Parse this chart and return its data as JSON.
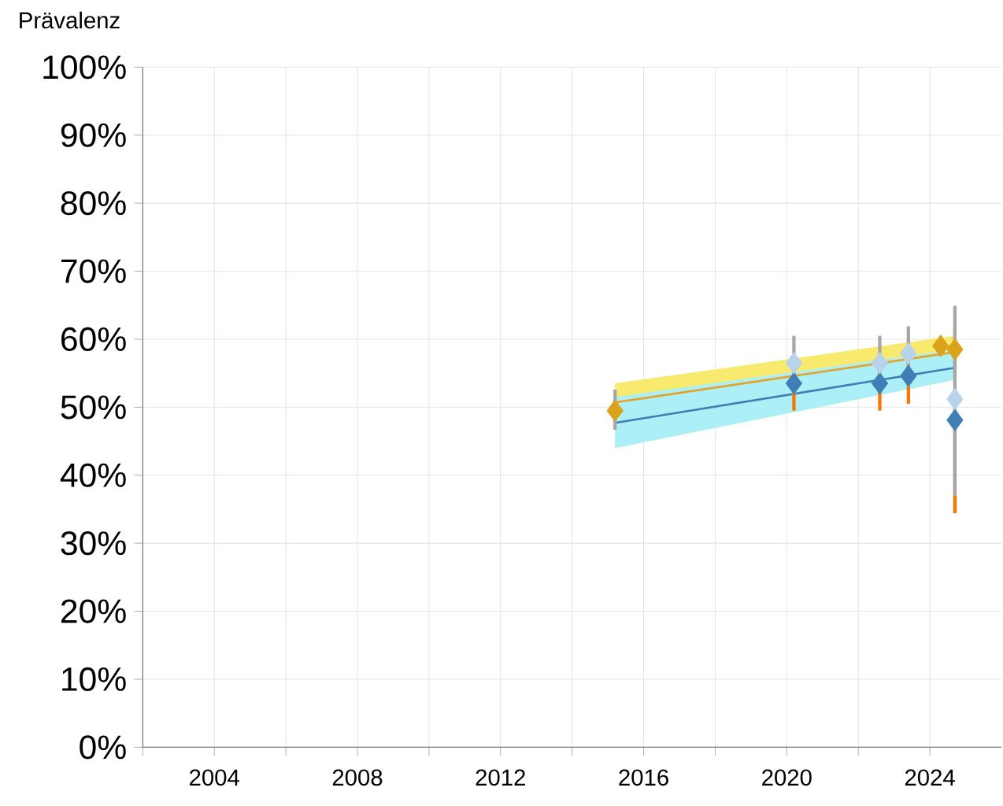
{
  "chart_data": {
    "type": "scatter",
    "ylabel": "Prävalenz",
    "xlim": [
      2002,
      2026
    ],
    "ylim": [
      0,
      100
    ],
    "xticks": [
      {
        "value": 2002,
        "label": null
      },
      {
        "value": 2004,
        "label": "2004"
      },
      {
        "value": 2006,
        "label": null
      },
      {
        "value": 2008,
        "label": "2008"
      },
      {
        "value": 2010,
        "label": null
      },
      {
        "value": 2012,
        "label": "2012"
      },
      {
        "value": 2014,
        "label": null
      },
      {
        "value": 2016,
        "label": "2016"
      },
      {
        "value": 2018,
        "label": null
      },
      {
        "value": 2020,
        "label": "2020"
      },
      {
        "value": 2022,
        "label": null
      },
      {
        "value": 2024,
        "label": "2024"
      }
    ],
    "yticks": [
      {
        "value": 0,
        "label": "0%"
      },
      {
        "value": 10,
        "label": "10%"
      },
      {
        "value": 20,
        "label": "20%"
      },
      {
        "value": 30,
        "label": "30%"
      },
      {
        "value": 40,
        "label": "40%"
      },
      {
        "value": 50,
        "label": "50%"
      },
      {
        "value": 60,
        "label": "60%"
      },
      {
        "value": 70,
        "label": "70%"
      },
      {
        "value": 80,
        "label": "80%"
      },
      {
        "value": 90,
        "label": "90%"
      },
      {
        "value": 100,
        "label": "100%"
      }
    ],
    "grid": true,
    "series": [
      {
        "type": "line",
        "color": "#e3a325",
        "x": [
          2015.2,
          2024.7
        ],
        "values": [
          50.7,
          58.1
        ],
        "lower": [
          48.0,
          56.0
        ],
        "upper": [
          53.5,
          60.5
        ]
      },
      {
        "type": "line",
        "color": "#3f7fb5",
        "x": [
          2015.2,
          2024.7
        ],
        "values": [
          47.7,
          55.8
        ],
        "lower": [
          44.0,
          54.0
        ],
        "upper": [
          51.5,
          58.5
        ]
      },
      {
        "marker": "diamond",
        "color": "#dba21a",
        "x": [
          2015.2,
          2024.3,
          2024.7
        ],
        "values": [
          49.5,
          59.0,
          58.5
        ],
        "errors": [
          [
            46.7,
            52.6
          ],
          [
            57.5,
            60.5
          ],
          [
            55.0,
            61.4
          ]
        ]
      },
      {
        "marker": "diamond",
        "color": "#3f7fb5",
        "x": [
          2020.2,
          2022.6,
          2023.4,
          2024.7
        ],
        "values": [
          53.5,
          53.5,
          54.6,
          48.1
        ],
        "errors": [
          [
            49.5,
            56.0
          ],
          [
            49.5,
            56.0
          ],
          [
            50.5,
            57.0
          ],
          [
            34.4,
            52.0
          ]
        ]
      },
      {
        "marker": "diamond",
        "color": "#b9d3ea",
        "x": [
          2020.2,
          2022.6,
          2023.4,
          2024.7
        ],
        "values": [
          56.5,
          56.5,
          57.9,
          51.2
        ],
        "errors": [
          [
            52.0,
            60.5
          ],
          [
            52.0,
            60.5
          ],
          [
            53.0,
            61.9
          ],
          [
            37.0,
            64.9
          ]
        ]
      }
    ]
  }
}
